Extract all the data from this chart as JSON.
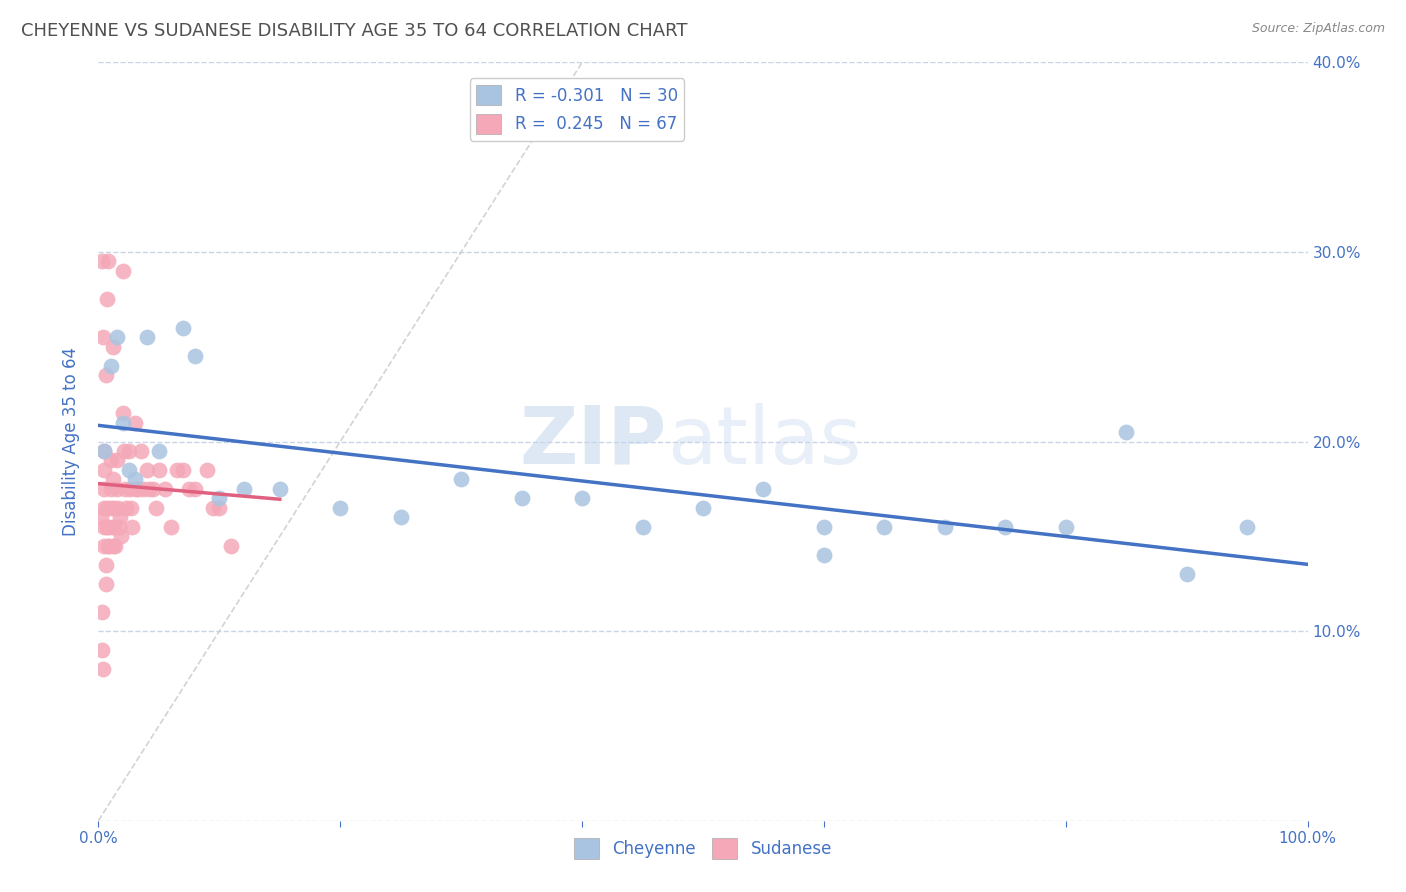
{
  "title": "CHEYENNE VS SUDANESE DISABILITY AGE 35 TO 64 CORRELATION CHART",
  "source_text": "Source: ZipAtlas.com",
  "ylabel": "Disability Age 35 to 64",
  "xlim": [
    0,
    1.0
  ],
  "ylim": [
    0,
    0.4
  ],
  "cheyenne_color": "#a8c4e0",
  "sudanese_color": "#f4a8b8",
  "cheyenne_line_color": "#4472c4",
  "sudanese_line_color": "#e06080",
  "ref_line_color": "#c8c8c8",
  "watermark_zip": "ZIP",
  "watermark_atlas": "atlas",
  "legend_R_cheyenne": "-0.301",
  "legend_N_cheyenne": "30",
  "legend_R_sudanese": "0.245",
  "legend_N_sudanese": "67",
  "cheyenne_x": [
    0.005,
    0.01,
    0.015,
    0.02,
    0.025,
    0.03,
    0.04,
    0.05,
    0.07,
    0.08,
    0.1,
    0.12,
    0.15,
    0.2,
    0.25,
    0.3,
    0.35,
    0.4,
    0.5,
    0.55,
    0.6,
    0.65,
    0.7,
    0.75,
    0.8,
    0.85,
    0.9,
    0.95,
    0.6,
    0.45
  ],
  "cheyenne_y": [
    0.195,
    0.24,
    0.255,
    0.21,
    0.185,
    0.18,
    0.255,
    0.195,
    0.26,
    0.245,
    0.17,
    0.175,
    0.175,
    0.165,
    0.16,
    0.18,
    0.17,
    0.17,
    0.165,
    0.175,
    0.14,
    0.155,
    0.155,
    0.155,
    0.155,
    0.205,
    0.13,
    0.155,
    0.155,
    0.155
  ],
  "sudanese_x": [
    0.002,
    0.003,
    0.003,
    0.004,
    0.005,
    0.005,
    0.005,
    0.005,
    0.005,
    0.005,
    0.006,
    0.006,
    0.007,
    0.007,
    0.008,
    0.008,
    0.009,
    0.01,
    0.01,
    0.01,
    0.011,
    0.012,
    0.012,
    0.013,
    0.013,
    0.014,
    0.015,
    0.015,
    0.016,
    0.017,
    0.018,
    0.019,
    0.02,
    0.021,
    0.022,
    0.023,
    0.025,
    0.026,
    0.027,
    0.028,
    0.03,
    0.031,
    0.033,
    0.035,
    0.037,
    0.04,
    0.042,
    0.045,
    0.048,
    0.05,
    0.055,
    0.06,
    0.065,
    0.07,
    0.075,
    0.08,
    0.09,
    0.095,
    0.1,
    0.11,
    0.003,
    0.004,
    0.006,
    0.007,
    0.008,
    0.012,
    0.02
  ],
  "sudanese_y": [
    0.16,
    0.11,
    0.09,
    0.08,
    0.195,
    0.185,
    0.175,
    0.165,
    0.155,
    0.145,
    0.135,
    0.125,
    0.165,
    0.155,
    0.155,
    0.145,
    0.145,
    0.19,
    0.175,
    0.165,
    0.155,
    0.145,
    0.18,
    0.165,
    0.155,
    0.145,
    0.19,
    0.175,
    0.165,
    0.155,
    0.16,
    0.15,
    0.215,
    0.195,
    0.175,
    0.165,
    0.195,
    0.175,
    0.165,
    0.155,
    0.21,
    0.175,
    0.175,
    0.195,
    0.175,
    0.185,
    0.175,
    0.175,
    0.165,
    0.185,
    0.175,
    0.155,
    0.185,
    0.185,
    0.175,
    0.175,
    0.185,
    0.165,
    0.165,
    0.145,
    0.295,
    0.255,
    0.235,
    0.275,
    0.295,
    0.25,
    0.29
  ],
  "background_color": "#ffffff",
  "grid_color": "#c8d4e8",
  "title_color": "#505050",
  "axis_label_color": "#4472c4",
  "tick_color": "#4472c4",
  "legend_label_color": "#4472c4"
}
